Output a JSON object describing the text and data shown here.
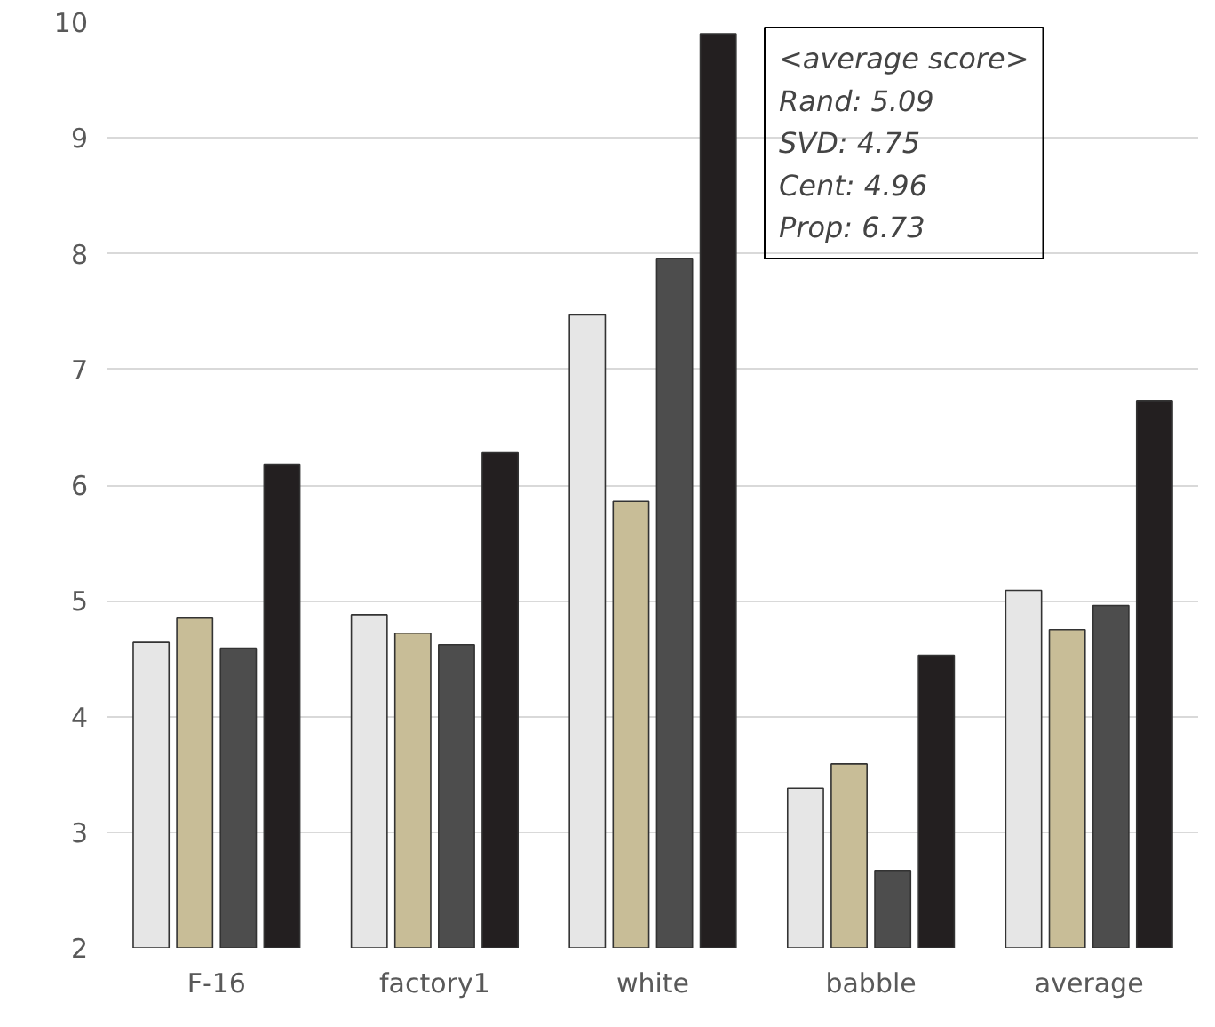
{
  "chart_data": {
    "type": "bar",
    "categories": [
      "F-16",
      "factory1",
      "white",
      "babble",
      "average"
    ],
    "series": [
      {
        "color": "#e6e6e6",
        "values": [
          4.64,
          4.88,
          7.47,
          3.38,
          5.09
        ]
      },
      {
        "color": "#c8bd97",
        "values": [
          4.85,
          4.72,
          5.86,
          3.59,
          4.75
        ]
      },
      {
        "color": "#4d4d4d",
        "values": [
          4.59,
          4.62,
          7.96,
          2.67,
          4.96
        ]
      },
      {
        "color": "#231f20",
        "values": [
          6.18,
          6.28,
          9.9,
          4.53,
          6.73
        ]
      }
    ],
    "ylim": [
      2,
      10
    ],
    "yticks": [
      2,
      3,
      4,
      5,
      6,
      7,
      8,
      9,
      10
    ],
    "grid": "y",
    "annotations": [
      "<average score>",
      "Rand: 5.09",
      "SVD: 4.75",
      "Cent: 4.96",
      "Prop: 6.73"
    ]
  }
}
